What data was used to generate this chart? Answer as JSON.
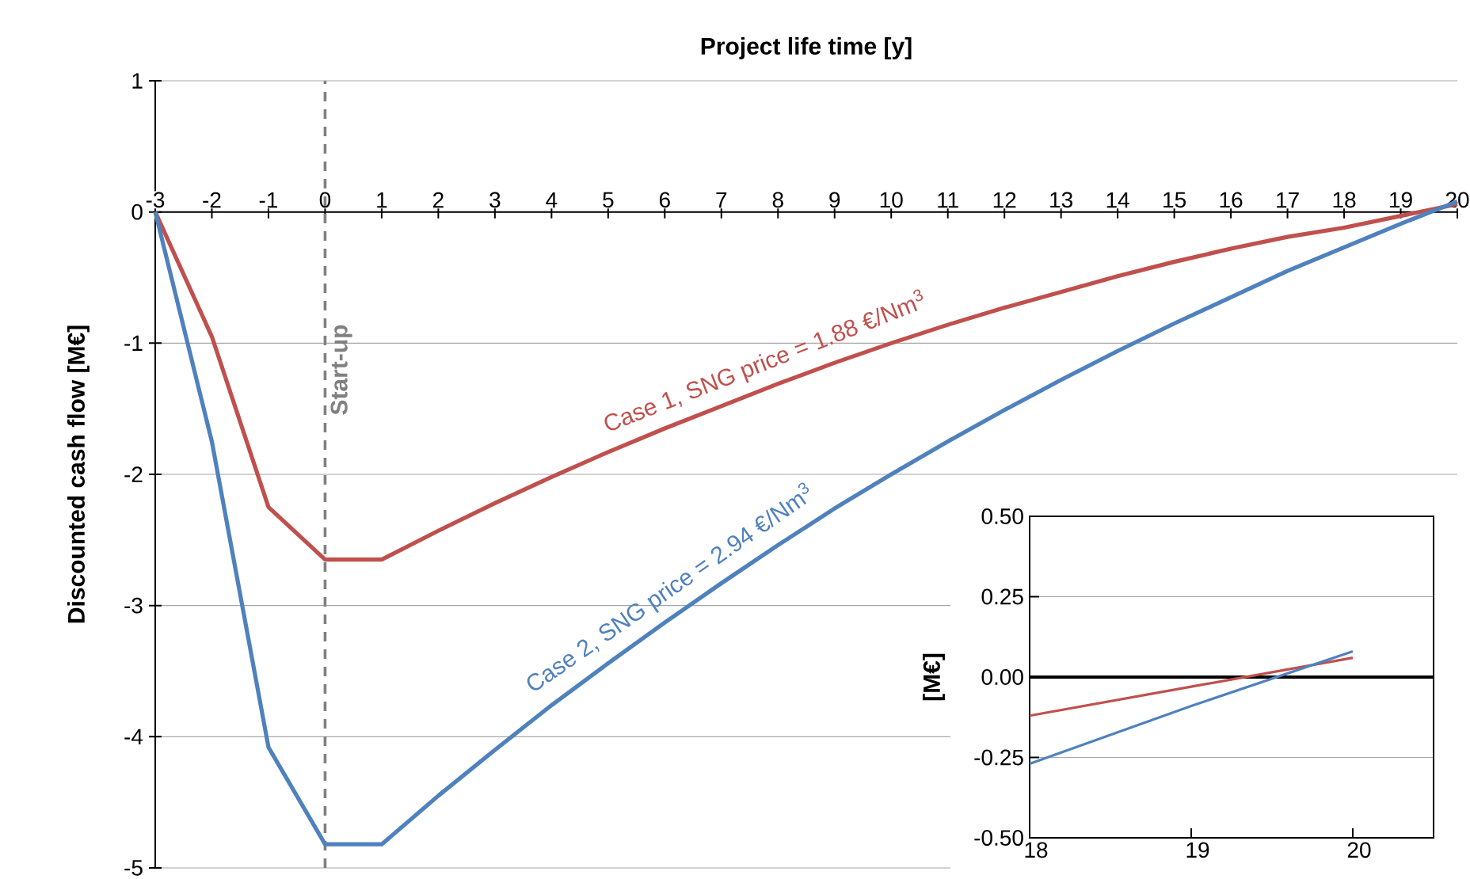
{
  "chart_data": [
    {
      "type": "line",
      "xlabel": "Project life time [y]",
      "ylabel": "Discounted cash flow [M€]",
      "x": [
        -3,
        -2,
        -1,
        0,
        1,
        2,
        3,
        4,
        5,
        6,
        7,
        8,
        9,
        10,
        11,
        12,
        13,
        14,
        15,
        16,
        17,
        18,
        19,
        20
      ],
      "xlim": [
        -3,
        20
      ],
      "xticks": [
        -3,
        -2,
        -1,
        0,
        1,
        2,
        3,
        4,
        5,
        6,
        7,
        8,
        9,
        10,
        11,
        12,
        13,
        14,
        15,
        16,
        17,
        18,
        19,
        20
      ],
      "ylim": [
        -5,
        1
      ],
      "yticks": [
        -5,
        -4,
        -3,
        -2,
        -1,
        0,
        1
      ],
      "grid": "y",
      "line_style": "solid",
      "marker": "none",
      "series": [
        {
          "name": "Case 1, SNG price = 1.88 €/Nm$^{3}$",
          "color": "#c0504d",
          "values": [
            0,
            -0.95,
            -2.25,
            -2.65,
            -2.65,
            -2.43,
            -2.22,
            -2.02,
            -1.83,
            -1.65,
            -1.48,
            -1.31,
            -1.15,
            -1.0,
            -0.86,
            -0.73,
            -0.61,
            -0.49,
            -0.38,
            -0.28,
            -0.19,
            -0.12,
            -0.03,
            0.06
          ]
        },
        {
          "name": "Case 2, SNG price = 2.94 €/Nm$^{3}$",
          "color": "#4f81bd",
          "values": [
            0,
            -1.75,
            -4.08,
            -4.82,
            -4.82,
            -4.45,
            -4.1,
            -3.76,
            -3.44,
            -3.13,
            -2.83,
            -2.54,
            -2.26,
            -2.0,
            -1.75,
            -1.51,
            -1.28,
            -1.06,
            -0.85,
            -0.65,
            -0.45,
            -0.27,
            -0.09,
            0.08
          ]
        }
      ],
      "ref_lines": [
        {
          "axis": "x",
          "value": 0,
          "label": "Start-up",
          "color": "#808080",
          "line_style": "dashed"
        }
      ]
    },
    {
      "type": "line",
      "ylabel": "[M€]",
      "x": [
        18,
        19,
        20
      ],
      "xlim": [
        18,
        20.5
      ],
      "xticks": [
        18,
        19,
        20
      ],
      "ylim": [
        -0.5,
        0.5
      ],
      "yticks": [
        {
          "value": -0.5,
          "label": "-0.50"
        },
        {
          "value": -0.25,
          "label": "-0.25"
        },
        {
          "value": 0,
          "label": "0.00"
        },
        {
          "value": 0.25,
          "label": "0.25"
        },
        {
          "value": 0.5,
          "label": "0.50"
        }
      ],
      "grid": "y",
      "line_style": "solid",
      "marker": "none",
      "series": [
        {
          "color": "#c0504d",
          "values": [
            -0.12,
            -0.03,
            0.06
          ]
        },
        {
          "color": "#4f81bd",
          "values": [
            -0.27,
            -0.09,
            0.08
          ]
        }
      ]
    }
  ]
}
